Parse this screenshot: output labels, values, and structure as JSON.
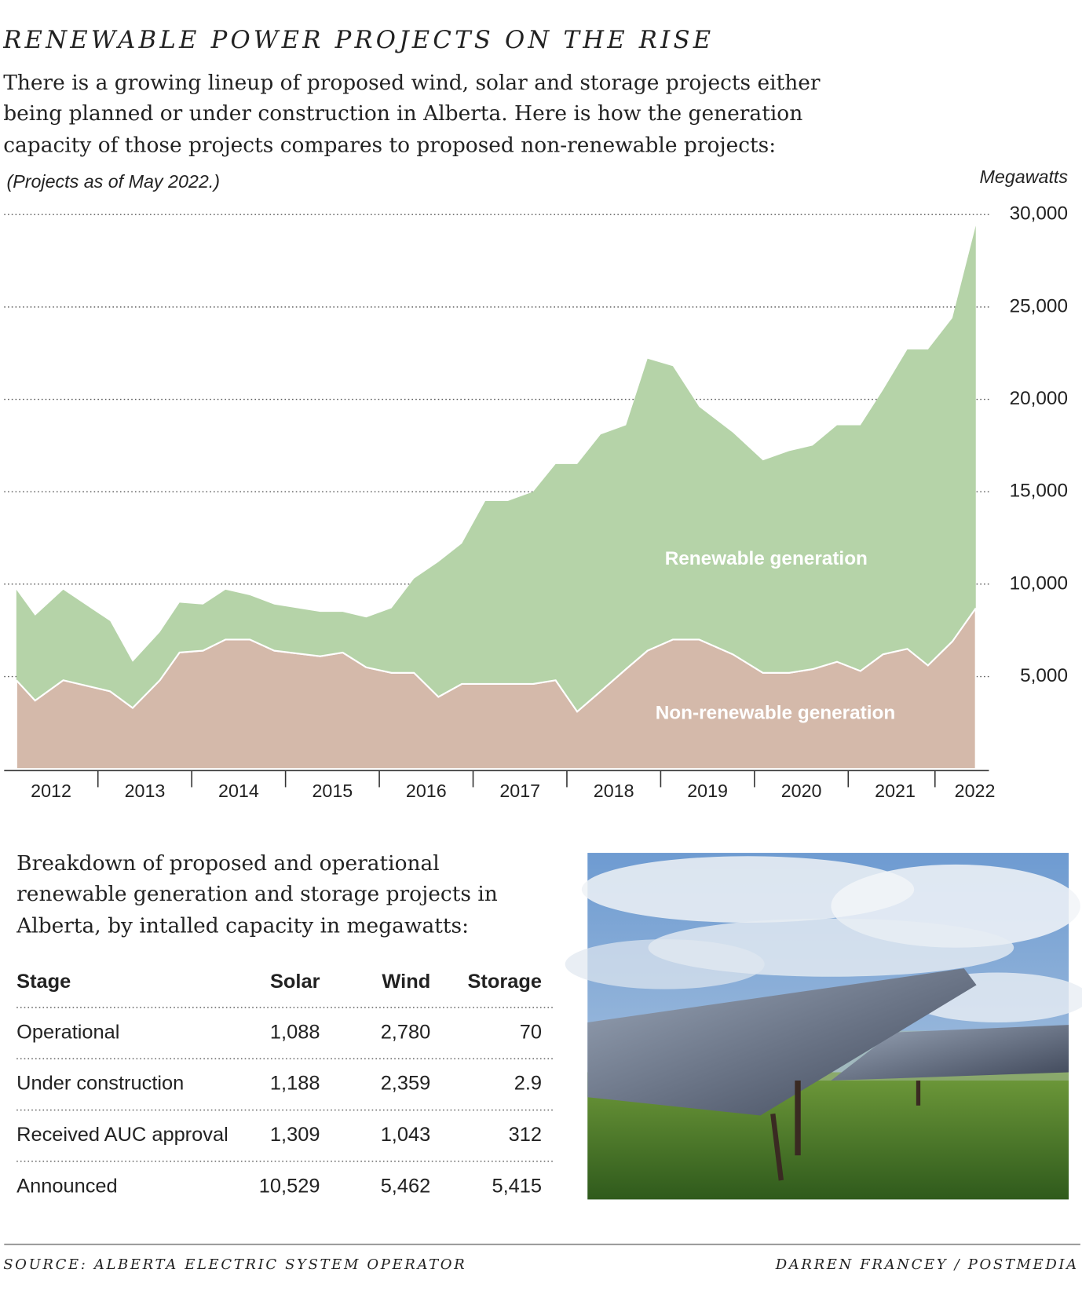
{
  "chart_data": {
    "type": "stacked_area",
    "title": "RENEWABLE POWER PROJECTS ON THE RISE",
    "subtitle": [
      "There is a growing lineup of proposed wind, solar and storage projects either",
      "being planned or under construction in Alberta. Here is how the generation",
      "capacity of those projects compares to proposed non-renewable projects:"
    ],
    "note": "(Projects as of May 2022.)",
    "y_label": "Megawatts",
    "x": [
      2012.13,
      2012.33,
      2012.63,
      2013.13,
      2013.37,
      2013.66,
      2013.87,
      2014.12,
      2014.36,
      2014.62,
      2014.88,
      2015.37,
      2015.61,
      2015.86,
      2016.13,
      2016.37,
      2016.63,
      2016.88,
      2017.13,
      2017.37,
      2017.64,
      2017.88,
      2018.11,
      2018.36,
      2018.63,
      2018.86,
      2019.13,
      2019.41,
      2019.77,
      2020.09,
      2020.37,
      2020.62,
      2020.88,
      2021.13,
      2021.37,
      2021.63,
      2021.85,
      2022.11,
      2022.36
    ],
    "series": [
      {
        "name": "Non-renewable generation",
        "color": "#d4b9aa",
        "values": [
          4800,
          3700,
          4800,
          4200,
          3300,
          4800,
          6300,
          6400,
          7000,
          7000,
          6400,
          6100,
          6300,
          5500,
          5200,
          5200,
          3900,
          4600,
          4600,
          4600,
          4600,
          4800,
          3100,
          4200,
          5400,
          6400,
          7000,
          7000,
          6200,
          5200,
          5200,
          5400,
          5800,
          5300,
          6200,
          6500,
          5600,
          6900,
          8700
        ]
      },
      {
        "name": "Renewable generation",
        "color": "#b5d3a8",
        "values": [
          4900,
          4600,
          4900,
          3800,
          2500,
          2600,
          2700,
          2500,
          2700,
          2400,
          2500,
          2400,
          2200,
          2700,
          3500,
          5100,
          7300,
          7600,
          9900,
          9900,
          10400,
          11700,
          13400,
          13900,
          13200,
          15800,
          14800,
          12600,
          12000,
          11500,
          12000,
          12100,
          12800,
          13300,
          14300,
          16200,
          17100,
          17500,
          20700
        ]
      }
    ],
    "xlim": [
      2012,
      2022.5
    ],
    "xticks": [
      {
        "value": 2012.5,
        "label": "2012"
      },
      {
        "value": 2013.5,
        "label": "2013"
      },
      {
        "value": 2014.5,
        "label": "2014"
      },
      {
        "value": 2015.5,
        "label": "2015"
      },
      {
        "value": 2016.5,
        "label": "2016"
      },
      {
        "value": 2017.5,
        "label": "2017"
      },
      {
        "value": 2018.5,
        "label": "2018"
      },
      {
        "value": 2019.5,
        "label": "2019"
      },
      {
        "value": 2020.5,
        "label": "2020"
      },
      {
        "value": 2021.5,
        "label": "2021"
      },
      {
        "value": 2022.35,
        "label": "2022"
      }
    ],
    "ylim": [
      0,
      30000
    ],
    "yticks": [
      {
        "value": 5000,
        "label": "5,000"
      },
      {
        "value": 10000,
        "label": "10,000"
      },
      {
        "value": 15000,
        "label": "15,000"
      },
      {
        "value": 20000,
        "label": "20,000"
      },
      {
        "value": 25000,
        "label": "25,000"
      },
      {
        "value": 30000,
        "label": "30,000"
      }
    ],
    "grid": true
  },
  "table": {
    "intro": [
      "Breakdown of proposed and operational",
      "renewable generation and storage projects in",
      "Alberta, by intalled capacity in megawatts:"
    ],
    "header": [
      "Stage",
      "Solar",
      "Wind",
      "Storage"
    ],
    "rows": [
      [
        "Operational",
        "1,088",
        "2,780",
        "70"
      ],
      [
        "Under construction",
        "1,188",
        "2,359",
        "2.9"
      ],
      [
        "Received AUC approval",
        "1,309",
        "1,043",
        "312"
      ],
      [
        "Announced",
        "10,529",
        "5,462",
        "5,415"
      ]
    ]
  },
  "footer": {
    "source": "SOURCE: ALBERTA ELECTRIC SYSTEM OPERATOR",
    "credit": "DARREN FRANCEY / POSTMEDIA"
  }
}
